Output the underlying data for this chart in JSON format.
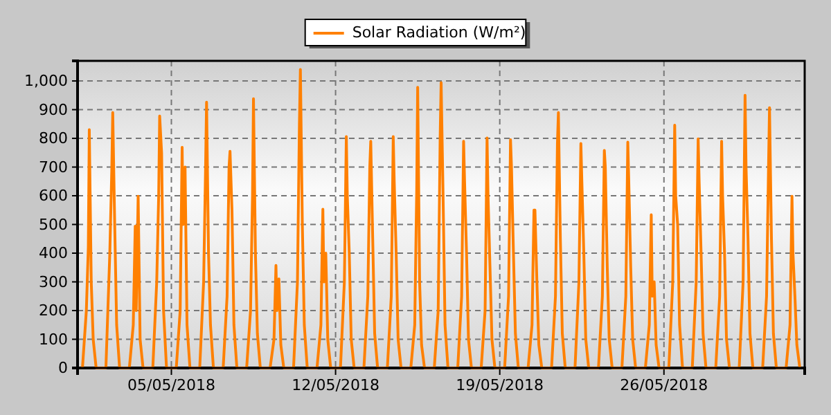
{
  "chart_data": {
    "type": "line",
    "legend": "top",
    "grid": true,
    "line_style": "solid",
    "marker": "none",
    "xlim": [
      "2018-05-01",
      "2018-06-01"
    ],
    "xticks": [
      {
        "value": "2018-05-05",
        "label": "05/05/2018"
      },
      {
        "value": "2018-05-12",
        "label": "12/05/2018"
      },
      {
        "value": "2018-05-19",
        "label": "19/05/2018"
      },
      {
        "value": "2018-05-26",
        "label": "26/05/2018"
      }
    ],
    "ylim": [
      0,
      1070
    ],
    "yticks": [
      0,
      100,
      200,
      300,
      400,
      500,
      600,
      700,
      800,
      900,
      {
        "value": 1000,
        "label": "1,000"
      }
    ],
    "x": [
      "2018-05-01T05:00",
      "2018-05-01T09:00",
      "2018-05-01T11:00",
      "2018-05-01T12:00",
      "2018-05-01T14:00",
      "2018-05-01T16:00",
      "2018-05-01T19:00",
      "2018-05-02T05:00",
      "2018-05-02T09:00",
      "2018-05-02T11:00",
      "2018-05-02T12:00",
      "2018-05-02T14:00",
      "2018-05-02T16:00",
      "2018-05-02T19:00",
      "2018-05-03T05:00",
      "2018-05-03T09:00",
      "2018-05-03T11:00",
      "2018-05-03T12:00",
      "2018-05-03T14:00",
      "2018-05-03T16:00",
      "2018-05-03T19:00",
      "2018-05-04T05:00",
      "2018-05-04T09:00",
      "2018-05-04T11:00",
      "2018-05-04T12:00",
      "2018-05-04T14:00",
      "2018-05-04T16:00",
      "2018-05-04T19:00",
      "2018-05-05T05:00",
      "2018-05-05T09:00",
      "2018-05-05T11:00",
      "2018-05-05T12:00",
      "2018-05-05T14:00",
      "2018-05-05T16:00",
      "2018-05-05T19:00",
      "2018-05-06T05:00",
      "2018-05-06T09:00",
      "2018-05-06T11:00",
      "2018-05-06T12:00",
      "2018-05-06T14:00",
      "2018-05-06T16:00",
      "2018-05-06T19:00",
      "2018-05-07T05:00",
      "2018-05-07T09:00",
      "2018-05-07T11:00",
      "2018-05-07T12:00",
      "2018-05-07T14:00",
      "2018-05-07T16:00",
      "2018-05-07T19:00",
      "2018-05-08T05:00",
      "2018-05-08T09:00",
      "2018-05-08T11:00",
      "2018-05-08T12:00",
      "2018-05-08T14:00",
      "2018-05-08T16:00",
      "2018-05-08T19:00",
      "2018-05-09T05:00",
      "2018-05-09T09:00",
      "2018-05-09T11:00",
      "2018-05-09T12:00",
      "2018-05-09T14:00",
      "2018-05-09T16:00",
      "2018-05-09T19:00",
      "2018-05-10T05:00",
      "2018-05-10T09:00",
      "2018-05-10T11:00",
      "2018-05-10T12:00",
      "2018-05-10T14:00",
      "2018-05-10T16:00",
      "2018-05-10T19:00",
      "2018-05-11T05:00",
      "2018-05-11T09:00",
      "2018-05-11T11:00",
      "2018-05-11T12:00",
      "2018-05-11T14:00",
      "2018-05-11T16:00",
      "2018-05-11T19:00",
      "2018-05-12T05:00",
      "2018-05-12T09:00",
      "2018-05-12T11:00",
      "2018-05-12T12:00",
      "2018-05-12T14:00",
      "2018-05-12T16:00",
      "2018-05-12T19:00",
      "2018-05-13T05:00",
      "2018-05-13T09:00",
      "2018-05-13T11:00",
      "2018-05-13T12:00",
      "2018-05-13T14:00",
      "2018-05-13T16:00",
      "2018-05-13T19:00",
      "2018-05-14T05:00",
      "2018-05-14T09:00",
      "2018-05-14T11:00",
      "2018-05-14T12:00",
      "2018-05-14T14:00",
      "2018-05-14T16:00",
      "2018-05-14T19:00",
      "2018-05-15T05:00",
      "2018-05-15T09:00",
      "2018-05-15T11:00",
      "2018-05-15T12:00",
      "2018-05-15T14:00",
      "2018-05-15T16:00",
      "2018-05-15T19:00",
      "2018-05-16T05:00",
      "2018-05-16T09:00",
      "2018-05-16T11:00",
      "2018-05-16T12:00",
      "2018-05-16T14:00",
      "2018-05-16T16:00",
      "2018-05-16T19:00",
      "2018-05-17T05:00",
      "2018-05-17T09:00",
      "2018-05-17T11:00",
      "2018-05-17T12:00",
      "2018-05-17T14:00",
      "2018-05-17T16:00",
      "2018-05-17T19:00",
      "2018-05-18T05:00",
      "2018-05-18T09:00",
      "2018-05-18T11:00",
      "2018-05-18T12:00",
      "2018-05-18T14:00",
      "2018-05-18T16:00",
      "2018-05-18T19:00",
      "2018-05-19T05:00",
      "2018-05-19T09:00",
      "2018-05-19T11:00",
      "2018-05-19T12:00",
      "2018-05-19T14:00",
      "2018-05-19T16:00",
      "2018-05-19T19:00",
      "2018-05-20T05:00",
      "2018-05-20T09:00",
      "2018-05-20T11:00",
      "2018-05-20T12:00",
      "2018-05-20T14:00",
      "2018-05-20T16:00",
      "2018-05-20T19:00",
      "2018-05-21T05:00",
      "2018-05-21T09:00",
      "2018-05-21T11:00",
      "2018-05-21T12:00",
      "2018-05-21T14:00",
      "2018-05-21T16:00",
      "2018-05-21T19:00",
      "2018-05-22T05:00",
      "2018-05-22T09:00",
      "2018-05-22T11:00",
      "2018-05-22T12:00",
      "2018-05-22T14:00",
      "2018-05-22T16:00",
      "2018-05-22T19:00",
      "2018-05-23T05:00",
      "2018-05-23T09:00",
      "2018-05-23T11:00",
      "2018-05-23T12:00",
      "2018-05-23T14:00",
      "2018-05-23T16:00",
      "2018-05-23T19:00",
      "2018-05-24T05:00",
      "2018-05-24T09:00",
      "2018-05-24T11:00",
      "2018-05-24T12:00",
      "2018-05-24T14:00",
      "2018-05-24T16:00",
      "2018-05-24T19:00",
      "2018-05-25T05:00",
      "2018-05-25T09:00",
      "2018-05-25T11:00",
      "2018-05-25T12:00",
      "2018-05-25T14:00",
      "2018-05-25T16:00",
      "2018-05-25T19:00",
      "2018-05-26T05:00",
      "2018-05-26T09:00",
      "2018-05-26T11:00",
      "2018-05-26T12:00",
      "2018-05-26T14:00",
      "2018-05-26T16:00",
      "2018-05-26T19:00",
      "2018-05-27T05:00",
      "2018-05-27T09:00",
      "2018-05-27T11:00",
      "2018-05-27T12:00",
      "2018-05-27T14:00",
      "2018-05-27T16:00",
      "2018-05-27T19:00",
      "2018-05-28T05:00",
      "2018-05-28T09:00",
      "2018-05-28T11:00",
      "2018-05-28T12:00",
      "2018-05-28T14:00",
      "2018-05-28T16:00",
      "2018-05-28T19:00",
      "2018-05-29T05:00",
      "2018-05-29T09:00",
      "2018-05-29T11:00",
      "2018-05-29T12:00",
      "2018-05-29T14:00",
      "2018-05-29T16:00",
      "2018-05-29T19:00",
      "2018-05-30T05:00",
      "2018-05-30T09:00",
      "2018-05-30T11:00",
      "2018-05-30T12:00",
      "2018-05-30T14:00",
      "2018-05-30T16:00",
      "2018-05-30T19:00",
      "2018-05-31T05:00",
      "2018-05-31T09:00",
      "2018-05-31T11:00",
      "2018-05-31T12:00",
      "2018-05-31T14:00",
      "2018-05-31T16:00",
      "2018-05-31T19:00"
    ],
    "series": [
      {
        "name": "Solar Radiation (W/m²)",
        "color": "#ff8000",
        "values": [
          0,
          200,
          420,
          830,
          300,
          100,
          0,
          0,
          400,
          686,
          890,
          500,
          150,
          0,
          0,
          150,
          494,
          200,
          598,
          100,
          0,
          0,
          300,
          600,
          878,
          750,
          200,
          0,
          0,
          200,
          769,
          500,
          700,
          150,
          0,
          0,
          300,
          700,
          926,
          400,
          150,
          0,
          0,
          250,
          700,
          755,
          550,
          150,
          0,
          0,
          200,
          600,
          938,
          400,
          120,
          0,
          0,
          100,
          357,
          200,
          310,
          80,
          0,
          0,
          300,
          850,
          1040,
          500,
          150,
          0,
          0,
          150,
          553,
          300,
          400,
          100,
          0,
          0,
          300,
          806,
          600,
          400,
          100,
          0,
          0,
          250,
          700,
          790,
          450,
          120,
          0,
          0,
          250,
          806,
          650,
          400,
          100,
          0,
          0,
          150,
          614,
          978,
          300,
          80,
          0,
          0,
          200,
          800,
          994,
          600,
          150,
          0,
          0,
          250,
          790,
          650,
          400,
          100,
          0,
          0,
          200,
          801,
          600,
          350,
          100,
          0,
          0,
          250,
          795,
          700,
          400,
          120,
          0,
          0,
          150,
          550,
          550,
          300,
          80,
          0,
          0,
          250,
          780,
          890,
          450,
          120,
          0,
          0,
          300,
          782,
          650,
          400,
          100,
          0,
          0,
          250,
          758,
          700,
          350,
          100,
          0,
          0,
          250,
          787,
          650,
          350,
          100,
          0,
          0,
          150,
          534,
          250,
          300,
          80,
          0,
          0,
          300,
          846,
          600,
          500,
          150,
          0,
          0,
          300,
          798,
          650,
          400,
          120,
          0,
          0,
          250,
          790,
          600,
          400,
          100,
          0,
          0,
          300,
          950,
          700,
          450,
          120,
          0,
          0,
          250,
          700,
          907,
          450,
          120,
          0,
          0,
          150,
          598,
          400,
          250,
          80,
          0
        ]
      }
    ]
  }
}
